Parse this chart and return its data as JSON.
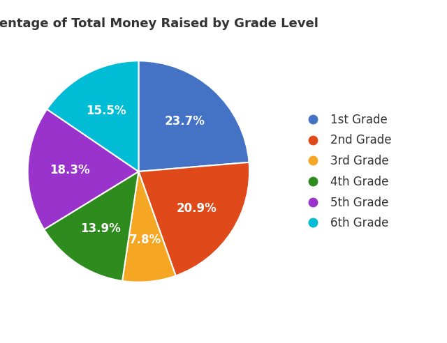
{
  "title": "Percentage of Total Money Raised by Grade Level",
  "labels": [
    "1st Grade",
    "2nd Grade",
    "3rd Grade",
    "4th Grade",
    "5th Grade",
    "6th Grade"
  ],
  "values": [
    23.7,
    20.9,
    7.8,
    13.9,
    18.3,
    15.5
  ],
  "colors": [
    "#4472C4",
    "#E04A1A",
    "#F5A623",
    "#2E8B1E",
    "#9933CC",
    "#00BCD4"
  ],
  "pct_labels": [
    "23.7%",
    "20.9%",
    "7.8%",
    "13.9%",
    "18.3%",
    "15.5%"
  ],
  "title_fontsize": 13,
  "label_fontsize": 12,
  "legend_fontsize": 12,
  "background_color": "#ffffff"
}
